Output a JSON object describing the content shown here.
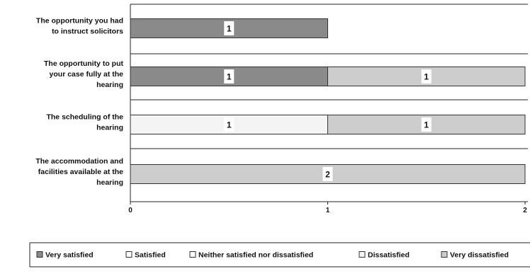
{
  "chart_data": {
    "type": "bar",
    "orientation": "horizontal",
    "stacked": true,
    "title": "",
    "xlabel": "",
    "ylabel": "",
    "xlim": [
      0,
      2
    ],
    "xticks": [
      "0",
      "1",
      "2"
    ],
    "grid": false,
    "legend_position": "bottom",
    "categories": [
      [
        "The opportunity you had",
        "to instruct solicitors"
      ],
      [
        "The opportunity to put",
        "your case fully at the",
        "hearing"
      ],
      [
        "The scheduling of the",
        "hearing"
      ],
      [
        "The accommodation and",
        "facilities available at the",
        "hearing"
      ]
    ],
    "series": [
      {
        "name": "Very satisfied",
        "color": "#8a8a8a",
        "values": [
          1,
          1,
          0,
          0
        ]
      },
      {
        "name": "Satisfied",
        "color": "#ffffff",
        "values": [
          0,
          0,
          0,
          0
        ]
      },
      {
        "name": "Neither satisfied nor dissatisfied",
        "color": "#ffffff",
        "values": [
          0,
          0,
          0,
          0
        ]
      },
      {
        "name": "Dissatisfied",
        "color": "#f4f4f4",
        "values": [
          0,
          0,
          1,
          0
        ]
      },
      {
        "name": "Very dissatisfied",
        "color": "#cdcdcd",
        "values": [
          0,
          1,
          1,
          2
        ]
      }
    ],
    "data_labels": [
      [
        "1"
      ],
      [
        "1",
        "1"
      ],
      [
        "1",
        "1"
      ],
      [
        "2"
      ]
    ]
  }
}
